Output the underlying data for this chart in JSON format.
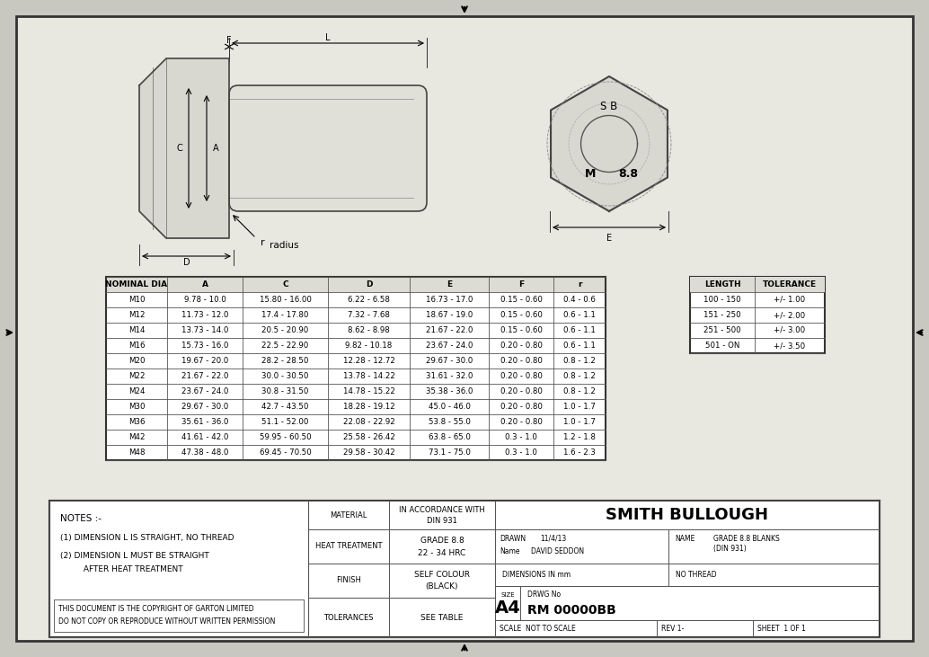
{
  "bg_color": "#c8c8c0",
  "inner_bg": "#e8e8e0",
  "table_headers": [
    "NOMINAL DIA",
    "A",
    "C",
    "D",
    "E",
    "F",
    "r"
  ],
  "table_rows": [
    [
      "M10",
      "9.78 - 10.0",
      "15.80 - 16.00",
      "6.22 - 6.58",
      "16.73 - 17.0",
      "0.15 - 0.60",
      "0.4 - 0.6"
    ],
    [
      "M12",
      "11.73 - 12.0",
      "17.4 - 17.80",
      "7.32 - 7.68",
      "18.67 - 19.0",
      "0.15 - 0.60",
      "0.6 - 1.1"
    ],
    [
      "M14",
      "13.73 - 14.0",
      "20.5 - 20.90",
      "8.62 - 8.98",
      "21.67 - 22.0",
      "0.15 - 0.60",
      "0.6 - 1.1"
    ],
    [
      "M16",
      "15.73 - 16.0",
      "22.5 - 22.90",
      "9.82 - 10.18",
      "23.67 - 24.0",
      "0.20 - 0.80",
      "0.6 - 1.1"
    ],
    [
      "M20",
      "19.67 - 20.0",
      "28.2 - 28.50",
      "12.28 - 12.72",
      "29.67 - 30.0",
      "0.20 - 0.80",
      "0.8 - 1.2"
    ],
    [
      "M22",
      "21.67 - 22.0",
      "30.0 - 30.50",
      "13.78 - 14.22",
      "31.61 - 32.0",
      "0.20 - 0.80",
      "0.8 - 1.2"
    ],
    [
      "M24",
      "23.67 - 24.0",
      "30.8 - 31.50",
      "14.78 - 15.22",
      "35.38 - 36.0",
      "0.20 - 0.80",
      "0.8 - 1.2"
    ],
    [
      "M30",
      "29.67 - 30.0",
      "42.7 - 43.50",
      "18.28 - 19.12",
      "45.0 - 46.0",
      "0.20 - 0.80",
      "1.0 - 1.7"
    ],
    [
      "M36",
      "35.61 - 36.0",
      "51.1 - 52.00",
      "22.08 - 22.92",
      "53.8 - 55.0",
      "0.20 - 0.80",
      "1.0 - 1.7"
    ],
    [
      "M42",
      "41.61 - 42.0",
      "59.95 - 60.50",
      "25.58 - 26.42",
      "63.8 - 65.0",
      "0.3 - 1.0",
      "1.2 - 1.8"
    ],
    [
      "M48",
      "47.38 - 48.0",
      "69.45 - 70.50",
      "29.58 - 30.42",
      "73.1 - 75.0",
      "0.3 - 1.0",
      "1.6 - 2.3"
    ]
  ],
  "tol_headers": [
    "LENGTH",
    "TOLERANCE"
  ],
  "tol_rows": [
    [
      "100 - 150",
      "+/- 1.00"
    ],
    [
      "151 - 250",
      "+/- 2.00"
    ],
    [
      "251 - 500",
      "+/- 3.00"
    ],
    [
      "501 - ON",
      "+/- 3.50"
    ]
  ],
  "notes_title": "NOTES :-",
  "notes_lines": [
    "(1) DIMENSION L IS STRAIGHT, NO THREAD",
    "(2) DIMENSION L MUST BE STRAIGHT",
    "         AFTER HEAT TREATMENT"
  ],
  "copyright_lines": [
    "THIS DOCUMENT IS THE COPYRIGHT OF GARTON LIMITED",
    "DO NOT COPY OR REPRODUCE WITHOUT WRITTEN PERMISSION"
  ],
  "material_label": "MATERIAL",
  "material_value1": "IN ACCORDANCE WITH",
  "material_value2": "DIN 931",
  "heat_label": "HEAT TREATMENT",
  "heat_value1": "GRADE 8.8",
  "heat_value2": "22 - 34 HRC",
  "finish_label": "FINISH",
  "finish_value1": "SELF COLOUR",
  "finish_value2": "(BLACK)",
  "tol_label": "TOLERANCES",
  "tol_value": "SEE TABLE",
  "company": "SMITH BULLOUGH",
  "drawn_label": "DRAWN",
  "drawn_date": "11/4/13",
  "name_label": "Name",
  "name_value": "DAVID SEDDON",
  "dim_label": "DIMENSIONS IN mm",
  "no_thread": "NO THREAD",
  "name2_label": "NAME",
  "name2_value1": "GRADE 8.8 BLANKS",
  "name2_value2": "(DIN 931)",
  "size_label": "SIZE",
  "size_value": "A4",
  "drwg_label": "DRWG No",
  "drwg_value": "RM 00000BB",
  "scale_label": "SCALE  NOT TO SCALE",
  "rev_label": "REV 1-",
  "sheet_label": "SHEET  1 OF 1"
}
